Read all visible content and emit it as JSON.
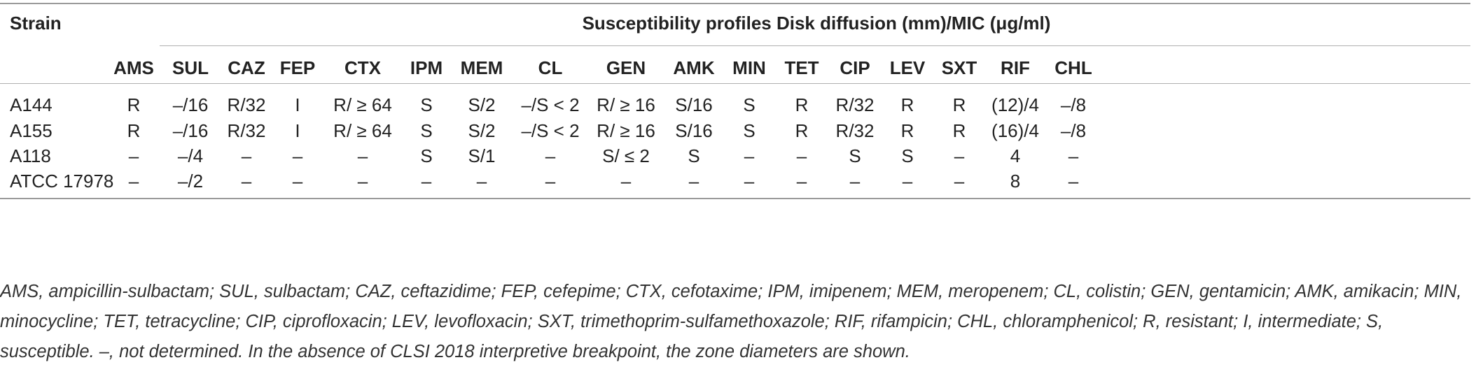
{
  "table": {
    "strain_header": "Strain",
    "group_header": "Susceptibility profiles Disk diffusion (mm)/MIC (μg/ml)",
    "columns": [
      "AMS",
      "SUL",
      "CAZ",
      "FEP",
      "CTX",
      "IPM",
      "MEM",
      "CL",
      "GEN",
      "AMK",
      "MIN",
      "TET",
      "CIP",
      "LEV",
      "SXT",
      "RIF",
      "CHL"
    ],
    "rows": [
      {
        "strain": "A144",
        "values": [
          "R",
          "–/16",
          "R/32",
          "I",
          "R/ ≥ 64",
          "S",
          "S/2",
          "–/S < 2",
          "R/ ≥ 16",
          "S/16",
          "S",
          "R",
          "R/32",
          "R",
          "R",
          "(12)/4",
          "–/8"
        ]
      },
      {
        "strain": "A155",
        "values": [
          "R",
          "–/16",
          "R/32",
          "I",
          "R/ ≥ 64",
          "S",
          "S/2",
          "–/S < 2",
          "R/ ≥ 16",
          "S/16",
          "S",
          "R",
          "R/32",
          "R",
          "R",
          "(16)/4",
          "–/8"
        ]
      },
      {
        "strain": "A118",
        "values": [
          "–",
          "–/4",
          "–",
          "–",
          "–",
          "S",
          "S/1",
          "–",
          "S/ ≤ 2",
          "S",
          "–",
          "–",
          "S",
          "S",
          "–",
          "4",
          "–"
        ]
      },
      {
        "strain": "ATCC 17978",
        "values": [
          "–",
          "–/2",
          "–",
          "–",
          "–",
          "–",
          "–",
          "–",
          "–",
          "–",
          "–",
          "–",
          "–",
          "–",
          "–",
          "8",
          "–"
        ]
      }
    ]
  },
  "footnote": "AMS, ampicillin-sulbactam; SUL, sulbactam; CAZ, ceftazidime; FEP, cefepime; CTX, cefotaxime; IPM, imipenem; MEM, meropenem; CL, colistin; GEN, gentamicin; AMK, amikacin; MIN, minocycline; TET, tetracycline; CIP, ciprofloxacin; LEV, levofloxacin; SXT, trimethoprim-sulfamethoxazole; RIF, rifampicin; CHL, chloramphenicol; R, resistant; I, intermediate; S, susceptible. –, not determined. In the absence of CLSI 2018 interpretive breakpoint, the zone diameters are shown."
}
